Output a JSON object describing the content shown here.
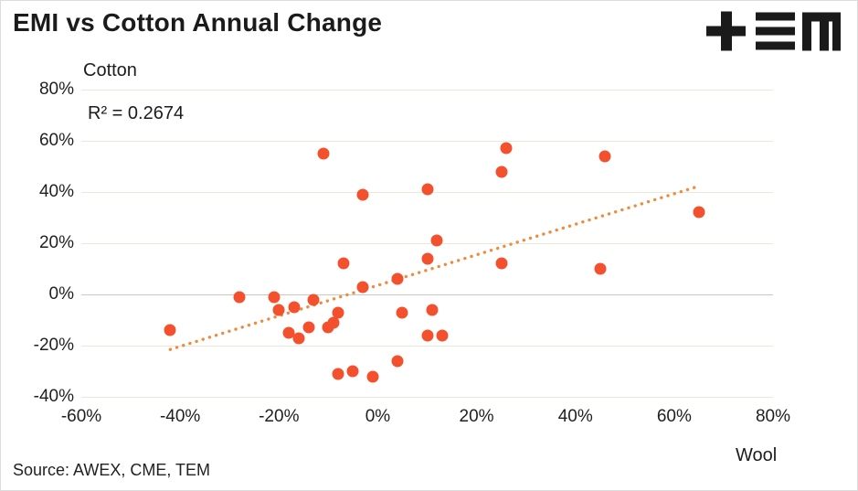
{
  "header": {
    "title": "EMI vs Cotton Annual Change",
    "logo_name": "TEM"
  },
  "footer": {
    "source": "Source: AWEX, CME, TEM"
  },
  "chart_data": {
    "type": "scatter",
    "title": "EMI vs Cotton Annual Change",
    "xlabel": "Wool",
    "ylabel": "Cotton",
    "annotation": "R² = 0.2674",
    "r_squared": 0.2674,
    "xlim": [
      -60,
      80
    ],
    "ylim": [
      -40,
      80
    ],
    "x_ticks": [
      -60,
      -40,
      -20,
      0,
      20,
      40,
      60,
      80
    ],
    "y_ticks": [
      80,
      60,
      40,
      20,
      0,
      -20,
      -40
    ],
    "tick_suffix": "%",
    "grid": true,
    "legend": "none",
    "points": [
      [
        -42,
        -14
      ],
      [
        -28,
        -1
      ],
      [
        -21,
        -1
      ],
      [
        -20,
        -6
      ],
      [
        -17,
        -5
      ],
      [
        -13,
        -2
      ],
      [
        -18,
        -15
      ],
      [
        -16,
        -17
      ],
      [
        -14,
        -13
      ],
      [
        -10,
        -13
      ],
      [
        -9,
        -11
      ],
      [
        -8,
        -7
      ],
      [
        -11,
        55
      ],
      [
        -7,
        12
      ],
      [
        -3,
        39
      ],
      [
        -3,
        3
      ],
      [
        4,
        6
      ],
      [
        10,
        14
      ],
      [
        10,
        41
      ],
      [
        12,
        21
      ],
      [
        5,
        -7
      ],
      [
        11,
        -6
      ],
      [
        10,
        -16
      ],
      [
        13,
        -16
      ],
      [
        -8,
        -31
      ],
      [
        -5,
        -30
      ],
      [
        -1,
        -32
      ],
      [
        4,
        -26
      ],
      [
        25,
        12
      ],
      [
        26,
        57
      ],
      [
        25,
        48
      ],
      [
        46,
        54
      ],
      [
        45,
        10
      ],
      [
        65,
        32
      ]
    ],
    "trendline": {
      "x1": -42,
      "y1": -21.5,
      "x2": 64.5,
      "y2": 42,
      "style": "dotted"
    },
    "colors": {
      "point": "#f3512e",
      "trend": "#ee8c3c",
      "grid": "#eae7db",
      "zero_line": "#c9c8c3",
      "text": "#1c1c1c"
    }
  }
}
